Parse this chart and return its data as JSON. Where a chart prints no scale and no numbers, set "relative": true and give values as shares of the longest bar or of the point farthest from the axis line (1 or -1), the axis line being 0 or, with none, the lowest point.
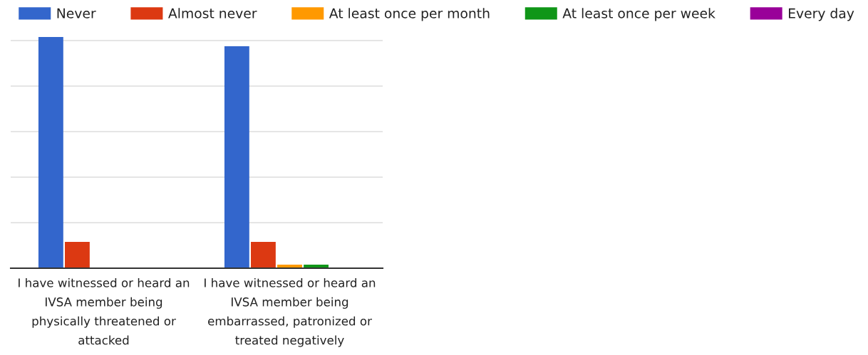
{
  "chart_data": {
    "type": "bar",
    "relative": true,
    "categories": [
      "I have witnessed or heard an IVSA member being physically threatened or attacked",
      "I have witnessed or heard an IVSA member being embarrassed, patronized or treated negatively"
    ],
    "series": [
      {
        "name": "Never",
        "color": "#3366cc",
        "values": [
          1,
          0.96
        ]
      },
      {
        "name": "Almost never",
        "color": "#dc3912",
        "values": [
          0.114,
          0.114
        ]
      },
      {
        "name": "At least once per month",
        "color": "#ff9900",
        "values": [
          0,
          0.015
        ]
      },
      {
        "name": "At least once per week",
        "color": "#109618",
        "values": [
          0,
          0.015
        ]
      },
      {
        "name": "Every day",
        "color": "#990099",
        "values": [
          0,
          0
        ]
      }
    ],
    "grid": "y",
    "legend": "top"
  }
}
